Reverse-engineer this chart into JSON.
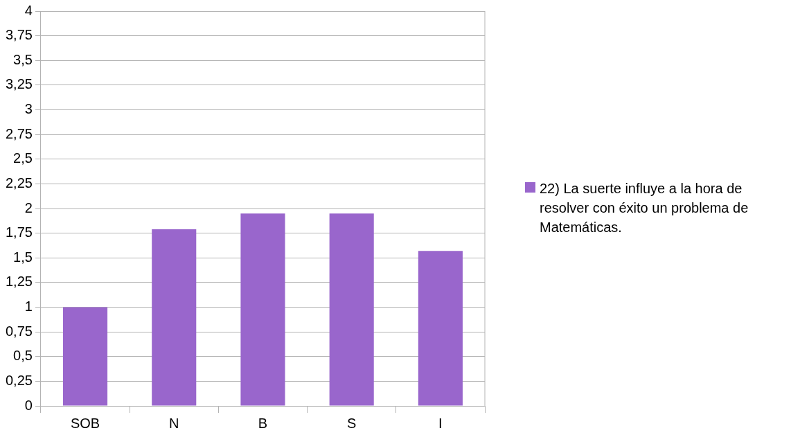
{
  "chart_data": {
    "type": "bar",
    "categories": [
      "SOB",
      "N",
      "B",
      "S",
      "I"
    ],
    "series": [
      {
        "name": "22)  La suerte influye a la hora de resolver con éxito un problema de Matemáticas.",
        "color": "#9966cc",
        "values": [
          1.0,
          1.79,
          1.95,
          1.95,
          1.57
        ]
      }
    ],
    "ylim": [
      0,
      4
    ],
    "yticks": [
      0,
      {
        "value": 0.25,
        "label": "0,25"
      },
      {
        "value": 0.5,
        "label": "0,5"
      },
      {
        "value": 0.75,
        "label": "0,75"
      },
      1,
      {
        "value": 1.25,
        "label": "1,25"
      },
      {
        "value": 1.5,
        "label": "1,5"
      },
      {
        "value": 1.75,
        "label": "1,75"
      },
      2,
      {
        "value": 2.25,
        "label": "2,25"
      },
      {
        "value": 2.5,
        "label": "2,5"
      },
      {
        "value": 2.75,
        "label": "2,75"
      },
      3,
      {
        "value": 3.25,
        "label": "3,25"
      },
      {
        "value": 3.5,
        "label": "3,5"
      },
      {
        "value": 3.75,
        "label": "3,75"
      },
      4
    ],
    "grid": "y",
    "legend": "right"
  }
}
